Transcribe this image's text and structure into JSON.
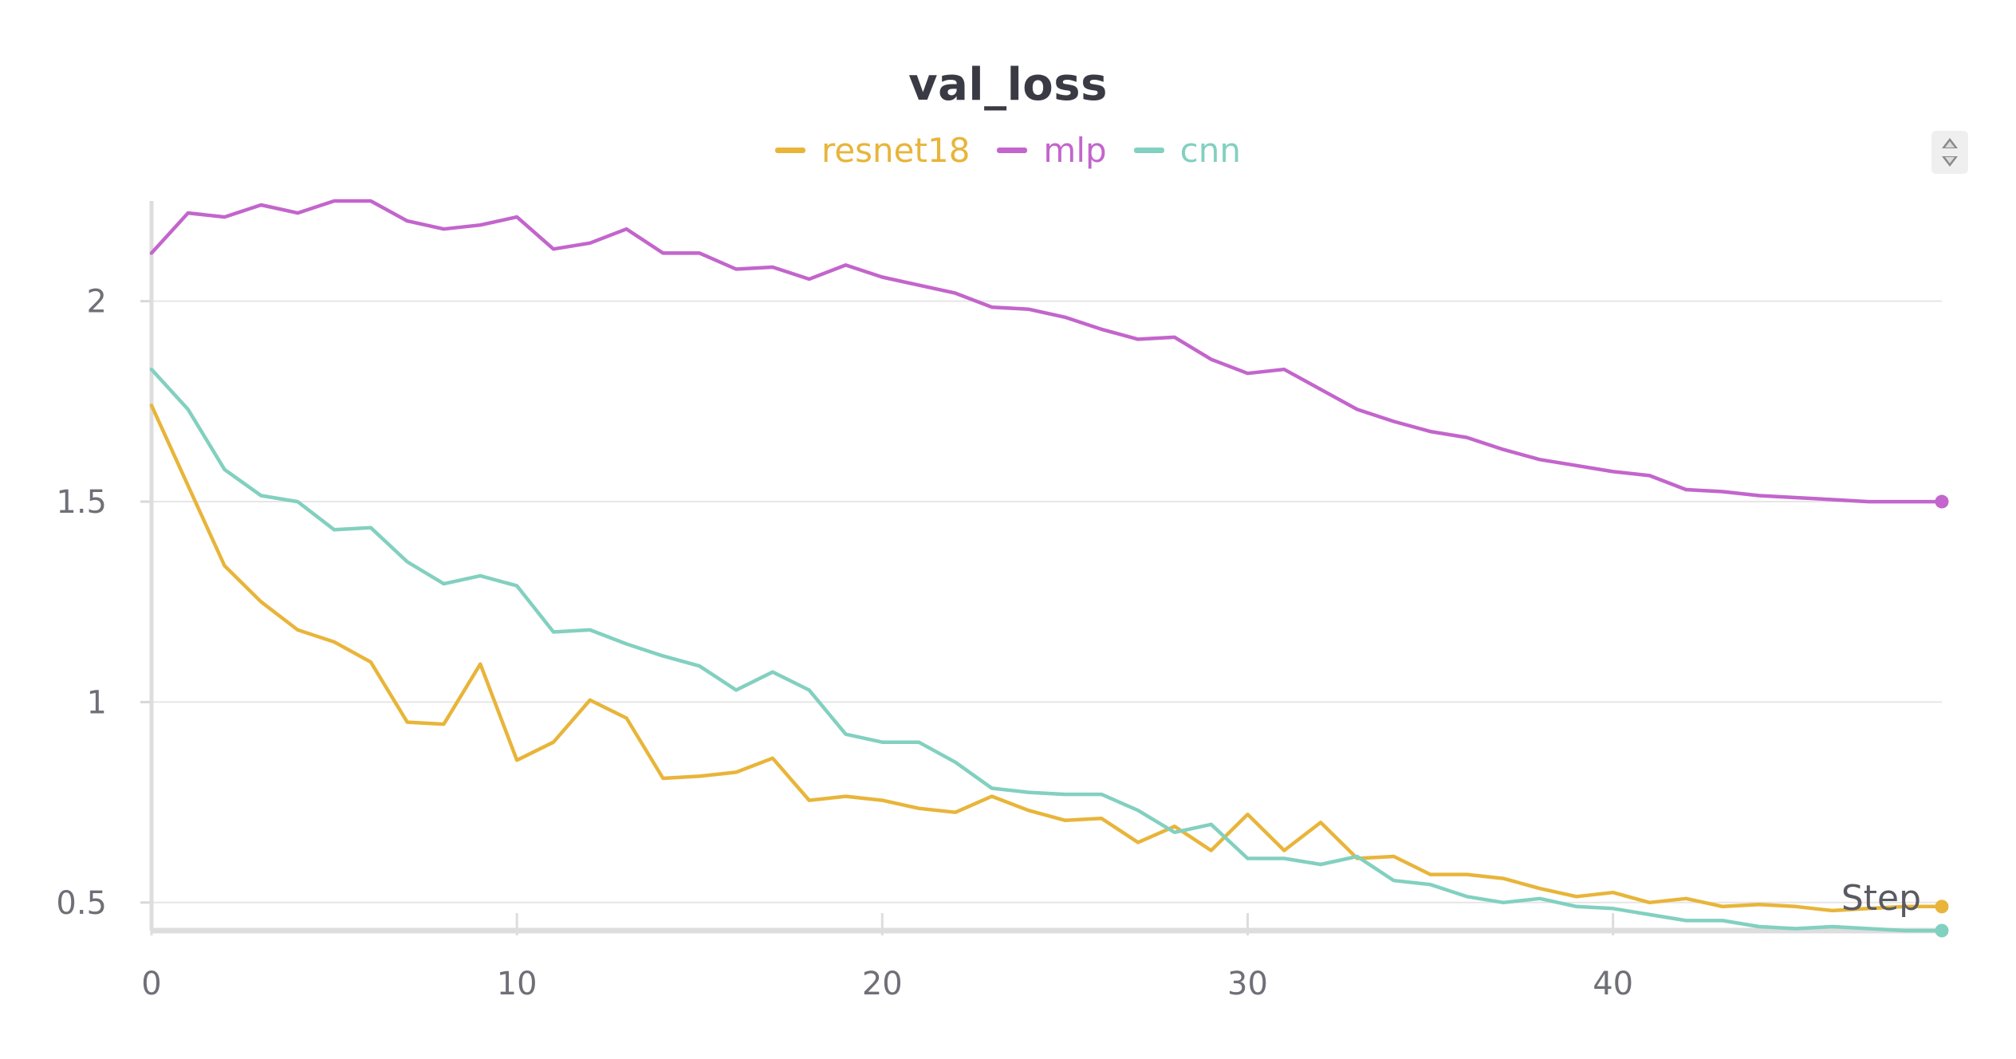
{
  "chart_data": {
    "type": "line",
    "title": "val_loss",
    "xlabel": "Step",
    "ylabel": "",
    "xlim": [
      0,
      49
    ],
    "ylim": [
      0.43,
      2.25
    ],
    "x_ticks": [
      0,
      10,
      20,
      30,
      40
    ],
    "x_tick_labels": [
      "0",
      "10",
      "20",
      "30",
      "40"
    ],
    "y_ticks": [
      0.5,
      1,
      1.5,
      2
    ],
    "y_tick_labels": [
      "0.5",
      "1",
      "1.5",
      "2"
    ],
    "grid": true,
    "legend_position": "top-center",
    "x": [
      0,
      1,
      2,
      3,
      4,
      5,
      6,
      7,
      8,
      9,
      10,
      11,
      12,
      13,
      14,
      15,
      16,
      17,
      18,
      19,
      20,
      21,
      22,
      23,
      24,
      25,
      26,
      27,
      28,
      29,
      30,
      31,
      32,
      33,
      34,
      35,
      36,
      37,
      38,
      39,
      40,
      41,
      42,
      43,
      44,
      45,
      46,
      47,
      48,
      49
    ],
    "series": [
      {
        "name": "resnet18",
        "color": "#E8B53A",
        "values": [
          1.74,
          1.54,
          1.34,
          1.25,
          1.18,
          1.15,
          1.1,
          0.95,
          0.945,
          1.095,
          0.855,
          0.9,
          1.005,
          0.96,
          0.81,
          0.815,
          0.825,
          0.86,
          0.755,
          0.765,
          0.755,
          0.735,
          0.725,
          0.765,
          0.73,
          0.705,
          0.71,
          0.65,
          0.69,
          0.63,
          0.72,
          0.63,
          0.7,
          0.61,
          0.615,
          0.57,
          0.57,
          0.56,
          0.535,
          0.515,
          0.525,
          0.5,
          0.51,
          0.49,
          0.495,
          0.49,
          0.48,
          0.485,
          0.49,
          0.49
        ]
      },
      {
        "name": "mlp",
        "color": "#C365CC",
        "values": [
          2.12,
          2.22,
          2.21,
          2.24,
          2.22,
          2.25,
          2.25,
          2.2,
          2.18,
          2.19,
          2.21,
          2.13,
          2.145,
          2.18,
          2.12,
          2.12,
          2.08,
          2.085,
          2.055,
          2.09,
          2.06,
          2.04,
          2.02,
          1.985,
          1.98,
          1.96,
          1.93,
          1.905,
          1.91,
          1.855,
          1.82,
          1.83,
          1.78,
          1.73,
          1.7,
          1.675,
          1.66,
          1.63,
          1.605,
          1.59,
          1.575,
          1.565,
          1.53,
          1.525,
          1.515,
          1.51,
          1.505,
          1.5,
          1.5,
          1.5
        ]
      },
      {
        "name": "cnn",
        "color": "#82D0C0",
        "values": [
          1.83,
          1.73,
          1.58,
          1.515,
          1.5,
          1.43,
          1.435,
          1.35,
          1.295,
          1.315,
          1.29,
          1.175,
          1.18,
          1.145,
          1.115,
          1.09,
          1.03,
          1.075,
          1.03,
          0.92,
          0.9,
          0.9,
          0.85,
          0.785,
          0.775,
          0.77,
          0.77,
          0.73,
          0.675,
          0.695,
          0.61,
          0.61,
          0.595,
          0.615,
          0.555,
          0.545,
          0.515,
          0.5,
          0.51,
          0.49,
          0.485,
          0.47,
          0.455,
          0.455,
          0.44,
          0.435,
          0.44,
          0.435,
          0.43,
          0.43
        ]
      }
    ]
  }
}
